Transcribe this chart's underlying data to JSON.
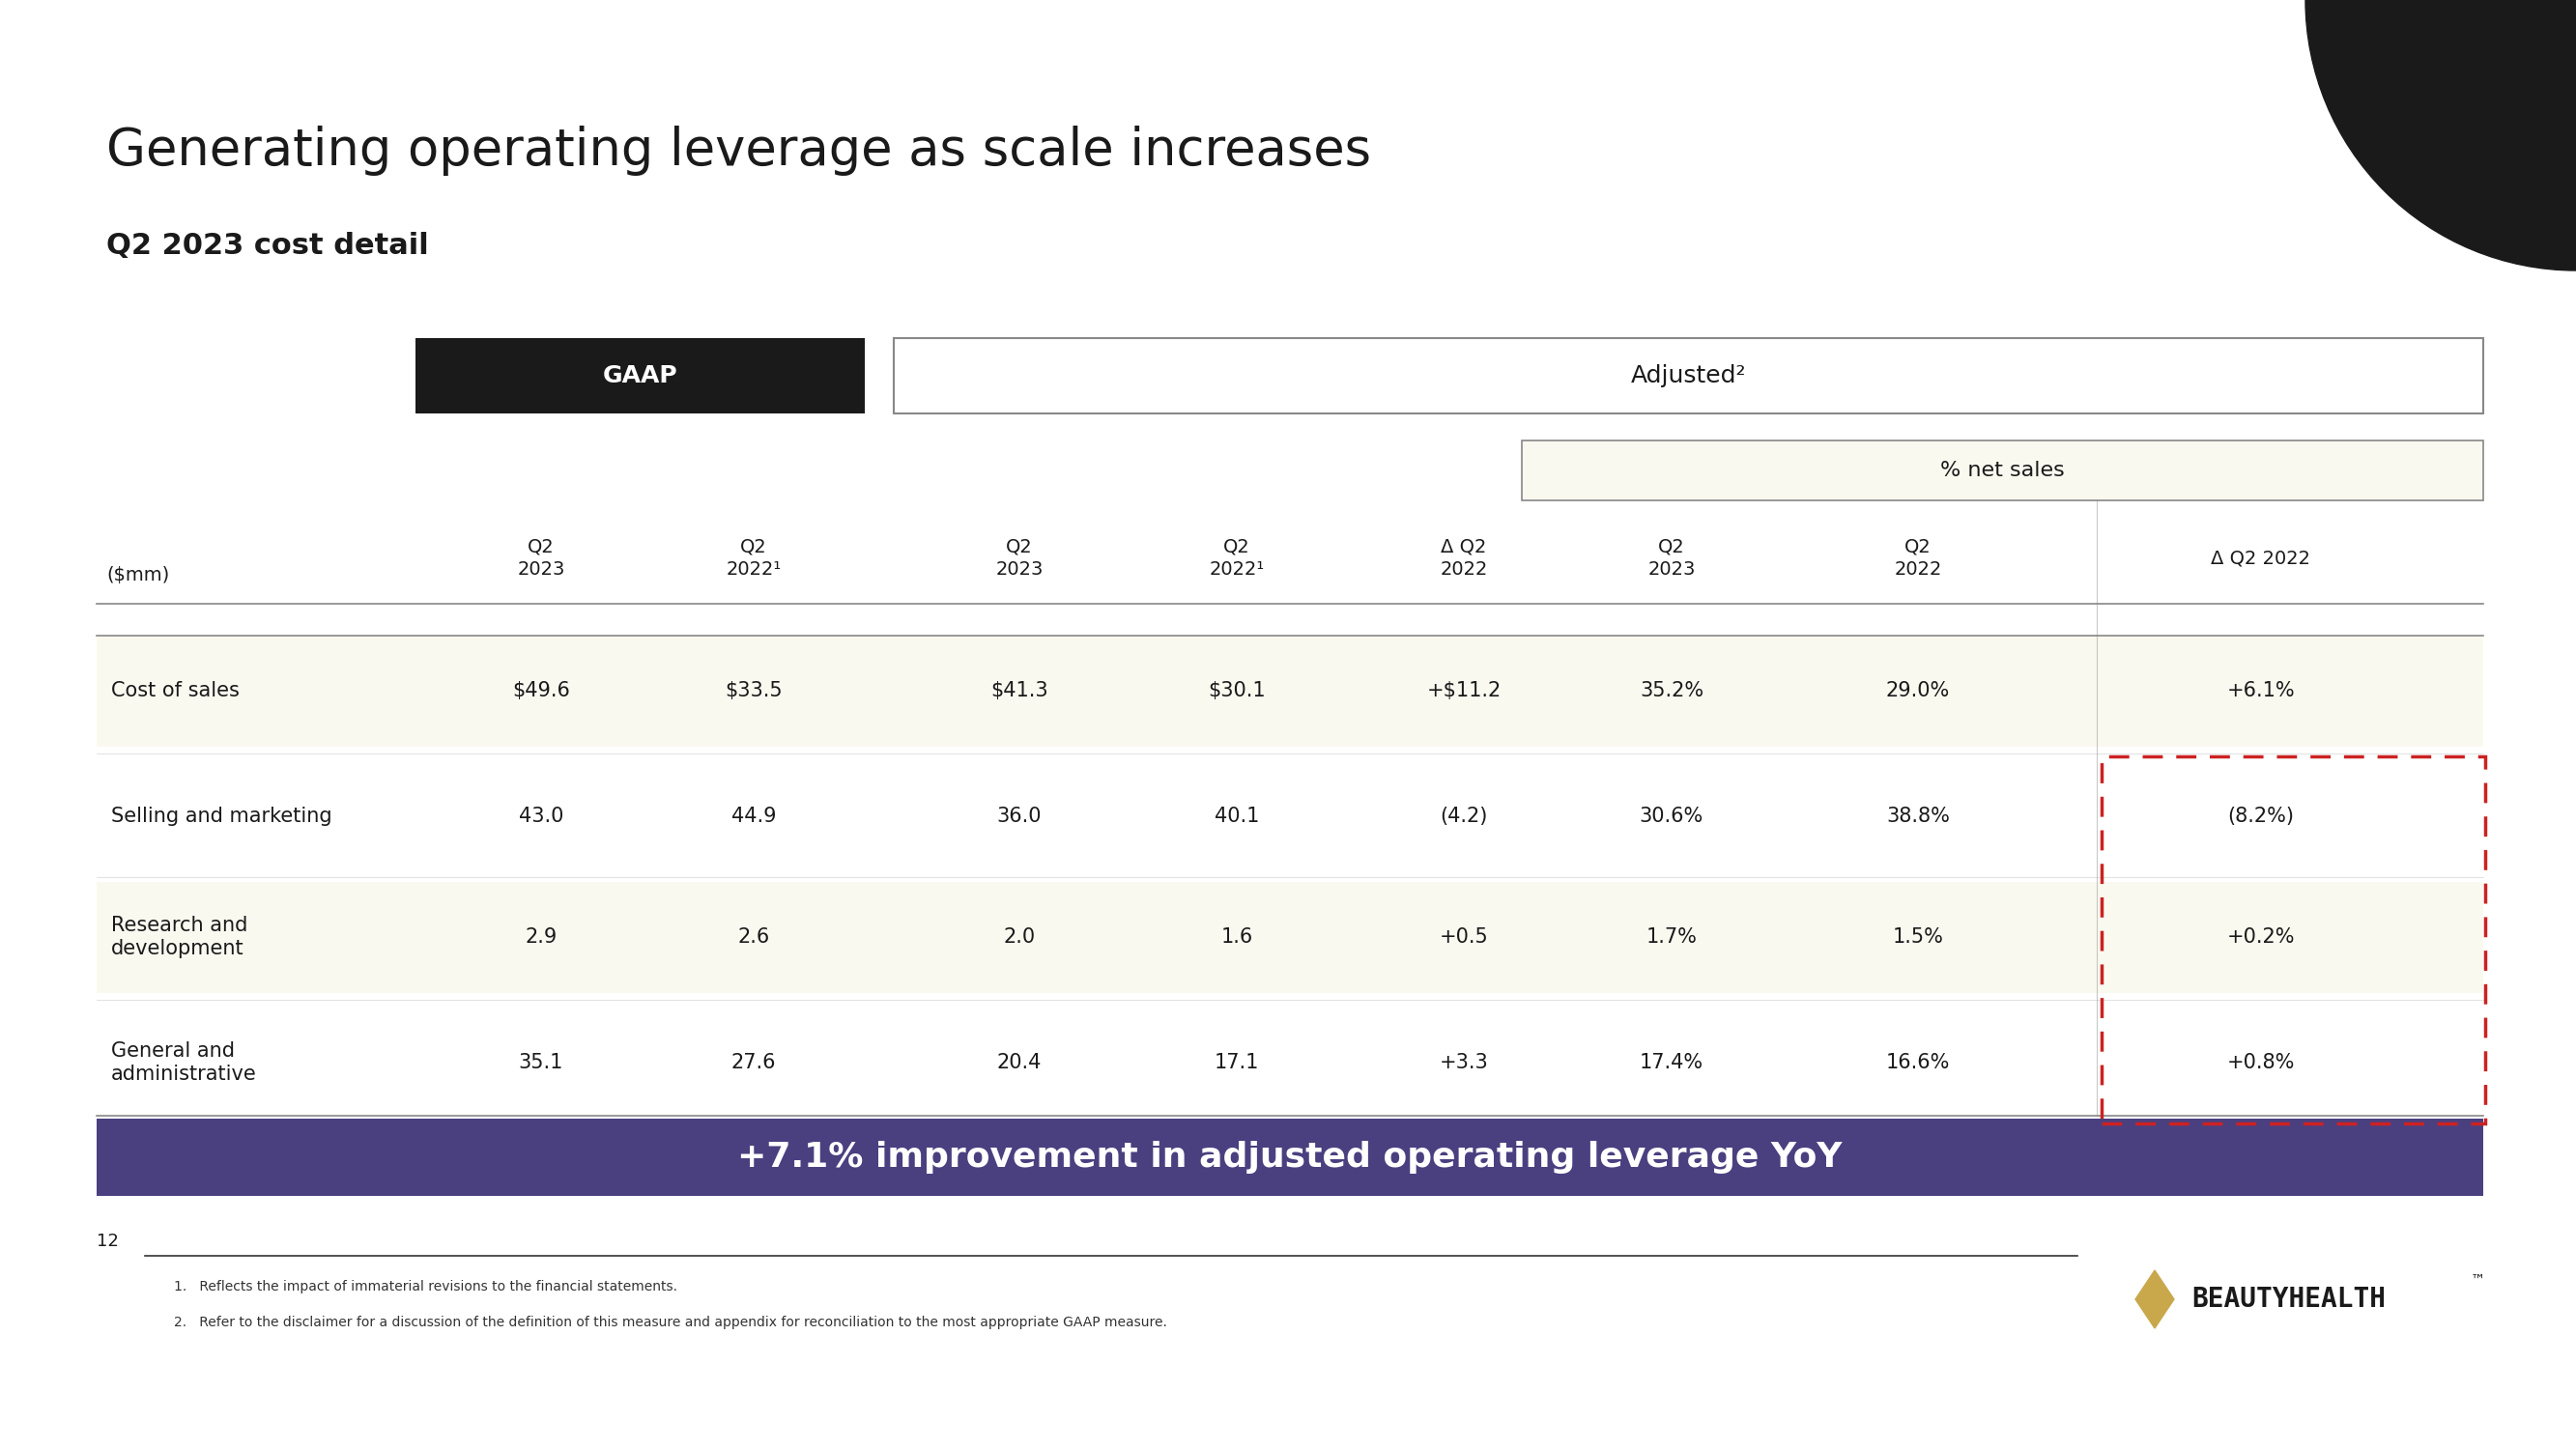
{
  "title": "Generating operating leverage as scale increases",
  "subtitle": "Q2 2023 cost detail",
  "bg_color": "#FFFFFF",
  "title_color": "#1a1a1a",
  "table_bg_light": "#FAF9F0",
  "table_bg_white": "#FFFFFF",
  "gaap_header_bg": "#1a1a1a",
  "gaap_header_color": "#FFFFFF",
  "adjusted_header_color": "#1a1a1a",
  "banner_bg": "#4a4080",
  "banner_text": "+7.1% improvement in adjusted operating leverage YoY",
  "banner_text_color": "#FFFFFF",
  "corner_color": "#1a1a1a",
  "page_num": "12",
  "footnote1": "Reflects the impact of immaterial revisions to the financial statements.",
  "footnote2": "Refer to the disclaimer for a discussion of the definition of this measure and appendix for reconciliation to the most appropriate GAAP measure.",
  "col_headers": [
    "Q2\n2023",
    "Q2\n2022¹",
    "Q2\n2023",
    "Q2\n2022¹",
    "Δ Q2\n2022",
    "Q2\n2023",
    "Q2\n2022",
    "Δ Q2 2022"
  ],
  "row_labels": [
    "Cost of sales",
    "Selling and marketing",
    "Research and\ndevelopment",
    "General and\nadministrative"
  ],
  "row_data": [
    [
      "$49.6",
      "$33.5",
      "$41.3",
      "$30.1",
      "+$11.2",
      "35.2%",
      "29.0%",
      "+6.1%"
    ],
    [
      "43.0",
      "44.9",
      "36.0",
      "40.1",
      "(4.2)",
      "30.6%",
      "38.8%",
      "(8.2%)"
    ],
    [
      "2.9",
      "2.6",
      "2.0",
      "1.6",
      "+0.5",
      "1.7%",
      "1.5%",
      "+0.2%"
    ],
    [
      "35.1",
      "27.6",
      "20.4",
      "17.1",
      "+3.3",
      "17.4%",
      "16.6%",
      "+0.8%"
    ]
  ],
  "line_color": "#888888",
  "dashed_color": "#cc2222",
  "diamond_color": "#c8a84b",
  "logo_text": "BEAUTYHEALTH",
  "logo_tm": "™"
}
